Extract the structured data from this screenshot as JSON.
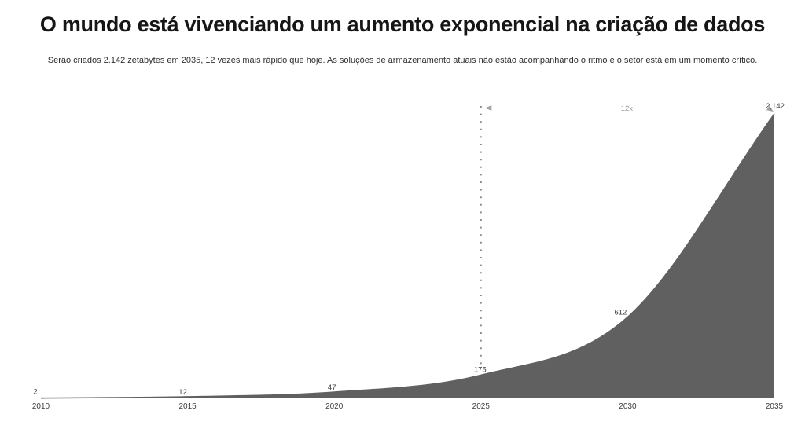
{
  "page": {
    "title": "O mundo está vivenciando um aumento exponencial na criação de dados",
    "subtitle": "Serão criados 2.142 zetabytes em 2035, 12 vezes mais rápido que hoje. As soluções de armazenamento atuais não estão acompanhando o ritmo e o setor está em um momento crítico."
  },
  "chart_data": {
    "type": "area",
    "title": "",
    "xlabel": "",
    "ylabel": "",
    "unit": "zetabytes",
    "x": [
      2010,
      2015,
      2020,
      2025,
      2030,
      2035
    ],
    "values": [
      2,
      12,
      47,
      175,
      612,
      2142
    ],
    "point_labels": [
      "2",
      "12",
      "47",
      "175",
      "612",
      "2,142"
    ],
    "x_tick_labels": [
      "2010",
      "2015",
      "2020",
      "2025",
      "2030",
      "2035"
    ],
    "ylim": [
      0,
      2142
    ],
    "grid": false,
    "legend": "none",
    "annotation": {
      "label": "12x",
      "from_year": 2025,
      "to_year": 2035,
      "shape": "horizontal double-headed arrow with dotted vertical guide line at 2025"
    },
    "colors": {
      "area_fill": "#606060",
      "annotation_line": "#a3a3a3",
      "annotation_text": "#9a9a9a",
      "dotted_guide": "#8a8a8a",
      "data_label": "#3c3c3c",
      "axis_label": "#3c3c3c"
    }
  }
}
